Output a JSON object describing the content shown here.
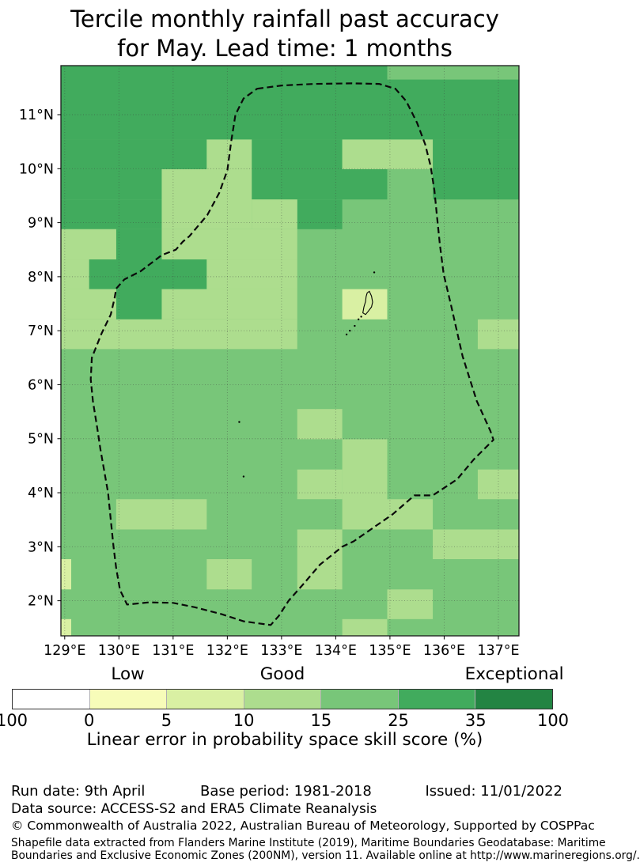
{
  "title": {
    "line1": "Tercile monthly rainfall past accuracy",
    "line2": "for May. Lead time: 1 months"
  },
  "chart_data": {
    "type": "heatmap",
    "title": "Tercile monthly rainfall past accuracy for May. Lead time: 1 months",
    "lon_range": [
      128.93,
      137.38
    ],
    "lat_range": [
      1.35,
      11.908
    ],
    "x_ticks": [
      {
        "value": 129,
        "label": "129°E"
      },
      {
        "value": 130,
        "label": "130°E"
      },
      {
        "value": 131,
        "label": "131°E"
      },
      {
        "value": 132,
        "label": "132°E"
      },
      {
        "value": 133,
        "label": "133°E"
      },
      {
        "value": 134,
        "label": "134°E"
      },
      {
        "value": 135,
        "label": "135°E"
      },
      {
        "value": 136,
        "label": "136°E"
      },
      {
        "value": 137,
        "label": "137°E"
      }
    ],
    "y_ticks": [
      {
        "value": 2,
        "label": "2°N"
      },
      {
        "value": 3,
        "label": "3°N"
      },
      {
        "value": 4,
        "label": "4°N"
      },
      {
        "value": 5,
        "label": "5°N"
      },
      {
        "value": 6,
        "label": "6°N"
      },
      {
        "value": 7,
        "label": "7°N"
      },
      {
        "value": 8,
        "label": "8°N"
      },
      {
        "value": 9,
        "label": "9°N"
      },
      {
        "value": 10,
        "label": "10°N"
      },
      {
        "value": 11,
        "label": "11°N"
      }
    ],
    "grid": true,
    "background": {
      "color": "#78c679",
      "skill": "15-25"
    },
    "levels": {
      "dark": "#41ab5d",
      "light": "#addd8e",
      "pale": "#d9f0a3"
    },
    "cells": [
      {
        "lon": [
          128.93,
          134.95
        ],
        "lat": [
          11.91,
          10.54
        ],
        "level": "dark",
        "skill": "25-35"
      },
      {
        "lon": [
          134.95,
          137.38
        ],
        "lat": [
          11.65,
          10.54
        ],
        "level": "dark",
        "skill": "25-35"
      },
      {
        "lon": [
          128.93,
          131.62
        ],
        "lat": [
          10.54,
          9.99
        ],
        "level": "dark",
        "skill": "25-35"
      },
      {
        "lon": [
          132.45,
          134.12
        ],
        "lat": [
          10.54,
          9.99
        ],
        "level": "dark",
        "skill": "25-35"
      },
      {
        "lon": [
          135.79,
          137.38
        ],
        "lat": [
          10.54,
          9.99
        ],
        "level": "dark",
        "skill": "25-35"
      },
      {
        "lon": [
          128.93,
          130.79
        ],
        "lat": [
          9.99,
          9.43
        ],
        "level": "dark",
        "skill": "25-35"
      },
      {
        "lon": [
          132.45,
          134.95
        ],
        "lat": [
          9.99,
          9.43
        ],
        "level": "dark",
        "skill": "25-35"
      },
      {
        "lon": [
          135.79,
          137.38
        ],
        "lat": [
          9.99,
          9.43
        ],
        "level": "dark",
        "skill": "25-35"
      },
      {
        "lon": [
          128.93,
          130.79
        ],
        "lat": [
          9.43,
          8.88
        ],
        "level": "dark",
        "skill": "25-35"
      },
      {
        "lon": [
          133.29,
          134.12
        ],
        "lat": [
          9.43,
          8.88
        ],
        "level": "dark",
        "skill": "25-35"
      },
      {
        "lon": [
          129.95,
          130.79
        ],
        "lat": [
          8.88,
          7.21
        ],
        "level": "dark",
        "skill": "25-35"
      },
      {
        "lon": [
          129.45,
          131.62
        ],
        "lat": [
          8.32,
          7.77
        ],
        "level": "dark",
        "skill": "25-35"
      },
      {
        "lon": [
          131.62,
          132.45
        ],
        "lat": [
          10.54,
          9.99
        ],
        "level": "light",
        "skill": "10-15"
      },
      {
        "lon": [
          134.12,
          135.79
        ],
        "lat": [
          10.54,
          9.99
        ],
        "level": "light",
        "skill": "10-15"
      },
      {
        "lon": [
          130.79,
          132.45
        ],
        "lat": [
          9.99,
          8.88
        ],
        "level": "light",
        "skill": "10-15"
      },
      {
        "lon": [
          132.45,
          133.29
        ],
        "lat": [
          9.43,
          8.88
        ],
        "level": "light",
        "skill": "10-15"
      },
      {
        "lon": [
          128.93,
          129.95
        ],
        "lat": [
          8.88,
          8.32
        ],
        "level": "light",
        "skill": "10-15"
      },
      {
        "lon": [
          130.79,
          133.29
        ],
        "lat": [
          8.88,
          8.32
        ],
        "level": "light",
        "skill": "10-15"
      },
      {
        "lon": [
          128.93,
          129.45
        ],
        "lat": [
          8.32,
          7.77
        ],
        "level": "light",
        "skill": "10-15"
      },
      {
        "lon": [
          131.62,
          133.29
        ],
        "lat": [
          8.32,
          7.77
        ],
        "level": "light",
        "skill": "10-15"
      },
      {
        "lon": [
          128.93,
          129.95
        ],
        "lat": [
          7.77,
          7.21
        ],
        "level": "light",
        "skill": "10-15"
      },
      {
        "lon": [
          130.79,
          133.29
        ],
        "lat": [
          7.77,
          7.21
        ],
        "level": "light",
        "skill": "10-15"
      },
      {
        "lon": [
          128.93,
          133.29
        ],
        "lat": [
          7.21,
          6.66
        ],
        "level": "light",
        "skill": "10-15"
      },
      {
        "lon": [
          136.62,
          137.38
        ],
        "lat": [
          7.21,
          6.66
        ],
        "level": "light",
        "skill": "10-15"
      },
      {
        "lon": [
          133.29,
          134.12
        ],
        "lat": [
          5.55,
          4.99
        ],
        "level": "light",
        "skill": "10-15"
      },
      {
        "lon": [
          134.12,
          134.95
        ],
        "lat": [
          4.99,
          3.32
        ],
        "level": "light",
        "skill": "10-15"
      },
      {
        "lon": [
          133.29,
          134.12
        ],
        "lat": [
          4.43,
          3.88
        ],
        "level": "light",
        "skill": "10-15"
      },
      {
        "lon": [
          136.62,
          137.38
        ],
        "lat": [
          4.43,
          3.88
        ],
        "level": "light",
        "skill": "10-15"
      },
      {
        "lon": [
          129.95,
          131.62
        ],
        "lat": [
          3.88,
          3.32
        ],
        "level": "light",
        "skill": "10-15"
      },
      {
        "lon": [
          134.95,
          135.79
        ],
        "lat": [
          3.88,
          3.32
        ],
        "level": "light",
        "skill": "10-15"
      },
      {
        "lon": [
          133.29,
          134.12
        ],
        "lat": [
          3.32,
          2.21
        ],
        "level": "light",
        "skill": "10-15"
      },
      {
        "lon": [
          135.79,
          137.38
        ],
        "lat": [
          3.32,
          2.77
        ],
        "level": "light",
        "skill": "10-15"
      },
      {
        "lon": [
          131.62,
          132.45
        ],
        "lat": [
          2.77,
          2.21
        ],
        "level": "light",
        "skill": "10-15"
      },
      {
        "lon": [
          134.95,
          135.79
        ],
        "lat": [
          2.21,
          1.66
        ],
        "level": "light",
        "skill": "10-15"
      },
      {
        "lon": [
          134.12,
          134.95
        ],
        "lat": [
          1.66,
          1.35
        ],
        "level": "light",
        "skill": "10-15"
      },
      {
        "lon": [
          134.12,
          134.95
        ],
        "lat": [
          7.77,
          7.21
        ],
        "level": "pale",
        "skill": "5-10"
      },
      {
        "lon": [
          128.93,
          129.12
        ],
        "lat": [
          2.77,
          2.21
        ],
        "level": "pale",
        "skill": "5-10"
      },
      {
        "lon": [
          128.93,
          129.12
        ],
        "lat": [
          1.66,
          1.35
        ],
        "level": "pale",
        "skill": "5-10"
      }
    ],
    "eez_boundary": [
      [
        132.55,
        11.48
      ],
      [
        133.0,
        11.54
      ],
      [
        133.6,
        11.57
      ],
      [
        134.3,
        11.58
      ],
      [
        134.8,
        11.57
      ],
      [
        135.1,
        11.48
      ],
      [
        135.3,
        11.25
      ],
      [
        135.5,
        10.85
      ],
      [
        135.65,
        10.45
      ],
      [
        135.75,
        10.05
      ],
      [
        135.82,
        9.6
      ],
      [
        135.87,
        9.1
      ],
      [
        135.92,
        8.6
      ],
      [
        135.99,
        8.05
      ],
      [
        136.12,
        7.5
      ],
      [
        136.34,
        6.53
      ],
      [
        136.6,
        5.7
      ],
      [
        136.85,
        5.15
      ],
      [
        136.91,
        4.98
      ],
      [
        136.55,
        4.62
      ],
      [
        136.24,
        4.25
      ],
      [
        135.79,
        3.95
      ],
      [
        135.45,
        3.95
      ],
      [
        135.05,
        3.6
      ],
      [
        134.76,
        3.4
      ],
      [
        134.33,
        3.1
      ],
      [
        134.12,
        3.0
      ],
      [
        133.71,
        2.67
      ],
      [
        133.42,
        2.33
      ],
      [
        133.13,
        2.0
      ],
      [
        132.95,
        1.72
      ],
      [
        132.8,
        1.55
      ],
      [
        132.3,
        1.62
      ],
      [
        131.9,
        1.75
      ],
      [
        131.4,
        1.88
      ],
      [
        131.0,
        1.96
      ],
      [
        130.55,
        1.97
      ],
      [
        130.15,
        1.93
      ],
      [
        130.02,
        2.2
      ],
      [
        129.95,
        2.6
      ],
      [
        129.9,
        3.0
      ],
      [
        129.85,
        3.5
      ],
      [
        129.8,
        4.0
      ],
      [
        129.66,
        4.8
      ],
      [
        129.6,
        5.2
      ],
      [
        129.52,
        5.7
      ],
      [
        129.48,
        6.1
      ],
      [
        129.5,
        6.5
      ],
      [
        129.68,
        6.95
      ],
      [
        129.85,
        7.3
      ],
      [
        129.92,
        7.6
      ],
      [
        129.95,
        7.78
      ],
      [
        130.1,
        7.95
      ],
      [
        130.4,
        8.1
      ],
      [
        130.79,
        8.4
      ],
      [
        131.05,
        8.5
      ],
      [
        131.18,
        8.65
      ],
      [
        131.3,
        8.75
      ],
      [
        131.63,
        9.14
      ],
      [
        131.85,
        9.55
      ],
      [
        132.0,
        9.97
      ],
      [
        132.07,
        10.5
      ],
      [
        132.15,
        11.0
      ],
      [
        132.3,
        11.3
      ]
    ],
    "islands": {
      "palau_outline": [
        [
          134.62,
          7.73
        ],
        [
          134.66,
          7.64
        ],
        [
          134.68,
          7.53
        ],
        [
          134.66,
          7.44
        ],
        [
          134.6,
          7.36
        ],
        [
          134.55,
          7.3
        ],
        [
          134.5,
          7.33
        ],
        [
          134.52,
          7.44
        ],
        [
          134.55,
          7.54
        ],
        [
          134.56,
          7.63
        ],
        [
          134.58,
          7.7
        ]
      ],
      "islets": [
        [
          134.71,
          8.08
        ],
        [
          134.47,
          7.26
        ],
        [
          134.42,
          7.21
        ],
        [
          134.35,
          7.09
        ],
        [
          134.26,
          7.0
        ],
        [
          134.2,
          6.93
        ],
        [
          132.22,
          5.31
        ],
        [
          132.3,
          4.3
        ]
      ]
    },
    "legend": {
      "caption": "Linear error in probability space skill score (%)",
      "qualitative_labels": [
        "Low",
        "Good",
        "Exceptional"
      ],
      "qualitative_segment_centers": [
        1.5,
        3.5,
        6.5
      ],
      "tick_labels": [
        "100",
        "0",
        "5",
        "10",
        "15",
        "25",
        "35",
        "100"
      ],
      "segments": [
        {
          "color": "#ffffff",
          "range": "100-0"
        },
        {
          "color": "#f7fcb9",
          "range": "0-5"
        },
        {
          "color": "#d9f0a3",
          "range": "5-10"
        },
        {
          "color": "#addd8e",
          "range": "10-15"
        },
        {
          "color": "#78c679",
          "range": "15-25"
        },
        {
          "color": "#41ab5d",
          "range": "25-35"
        },
        {
          "color": "#238443",
          "range": "35-100"
        }
      ]
    },
    "style": {
      "grid_color": "#3c3c3c",
      "boundary_color": "#0a0a0a",
      "frame_color": "#1a1a1a"
    }
  },
  "footer": {
    "run_date": "Run date: 9th April",
    "base_period": "Base period: 1981-2018",
    "issued": "Issued: 11/01/2022",
    "data_source": "Data source: ACCESS-S2 and ERA5 Climate Reanalysis",
    "copyright": "© Commonwealth of Australia 2022, Australian Bureau of Meteorology, Supported by COSPPac",
    "shapefile_line1": "Shapefile data extracted from Flanders Marine Institute (2019), Maritime Boundaries Geodatabase: Maritime",
    "shapefile_line2": "Boundaries and Exclusive Economic Zones (200NM), version 11. Available online at http://www.marineregions.org/."
  }
}
